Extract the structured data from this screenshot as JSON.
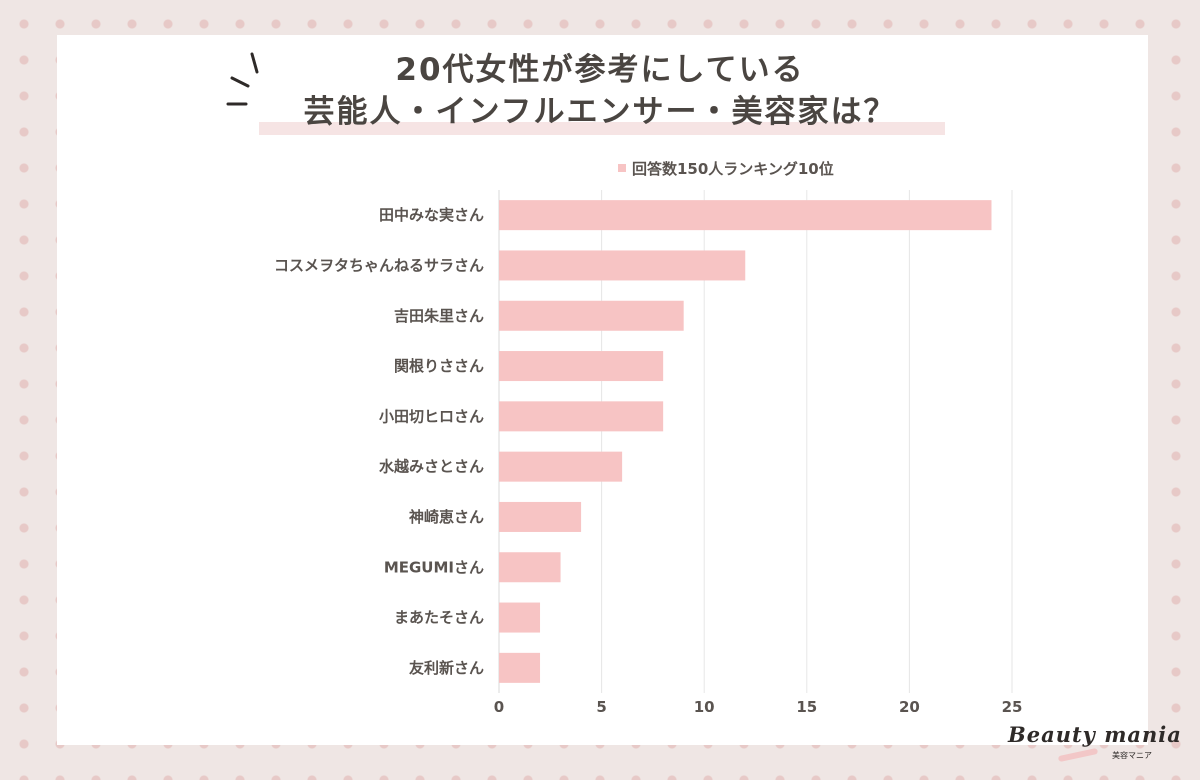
{
  "title_line1": "20代女性が参考にしている",
  "title_line2": "芸能人・インフルエンサー・美容家は？",
  "legend_label": "回答数150人ランキング10位",
  "logo": {
    "main": "Beauty mania",
    "sub": "美容マニア"
  },
  "colors": {
    "bar": "#f7c4c4",
    "text": "#5a5450",
    "title": "#4a4541",
    "grid": "#e6e6e6"
  },
  "chart_data": {
    "type": "bar",
    "orientation": "horizontal",
    "categories": [
      "田中みな実さん",
      "コスメヲタちゃんねるサラさん",
      "吉田朱里さん",
      "関根りささん",
      "小田切ヒロさん",
      "水越みさとさん",
      "神崎恵さん",
      "MEGUMIさん",
      "まあたそさん",
      "友利新さん"
    ],
    "series": [
      {
        "name": "回答数150人ランキング10位",
        "values": [
          24,
          12,
          9,
          8,
          8,
          6,
          4,
          3,
          2,
          2
        ]
      }
    ],
    "xlim": [
      0,
      25
    ],
    "xticks": [
      0,
      5,
      10,
      15,
      20,
      25
    ],
    "grid": true,
    "legend": "top"
  }
}
